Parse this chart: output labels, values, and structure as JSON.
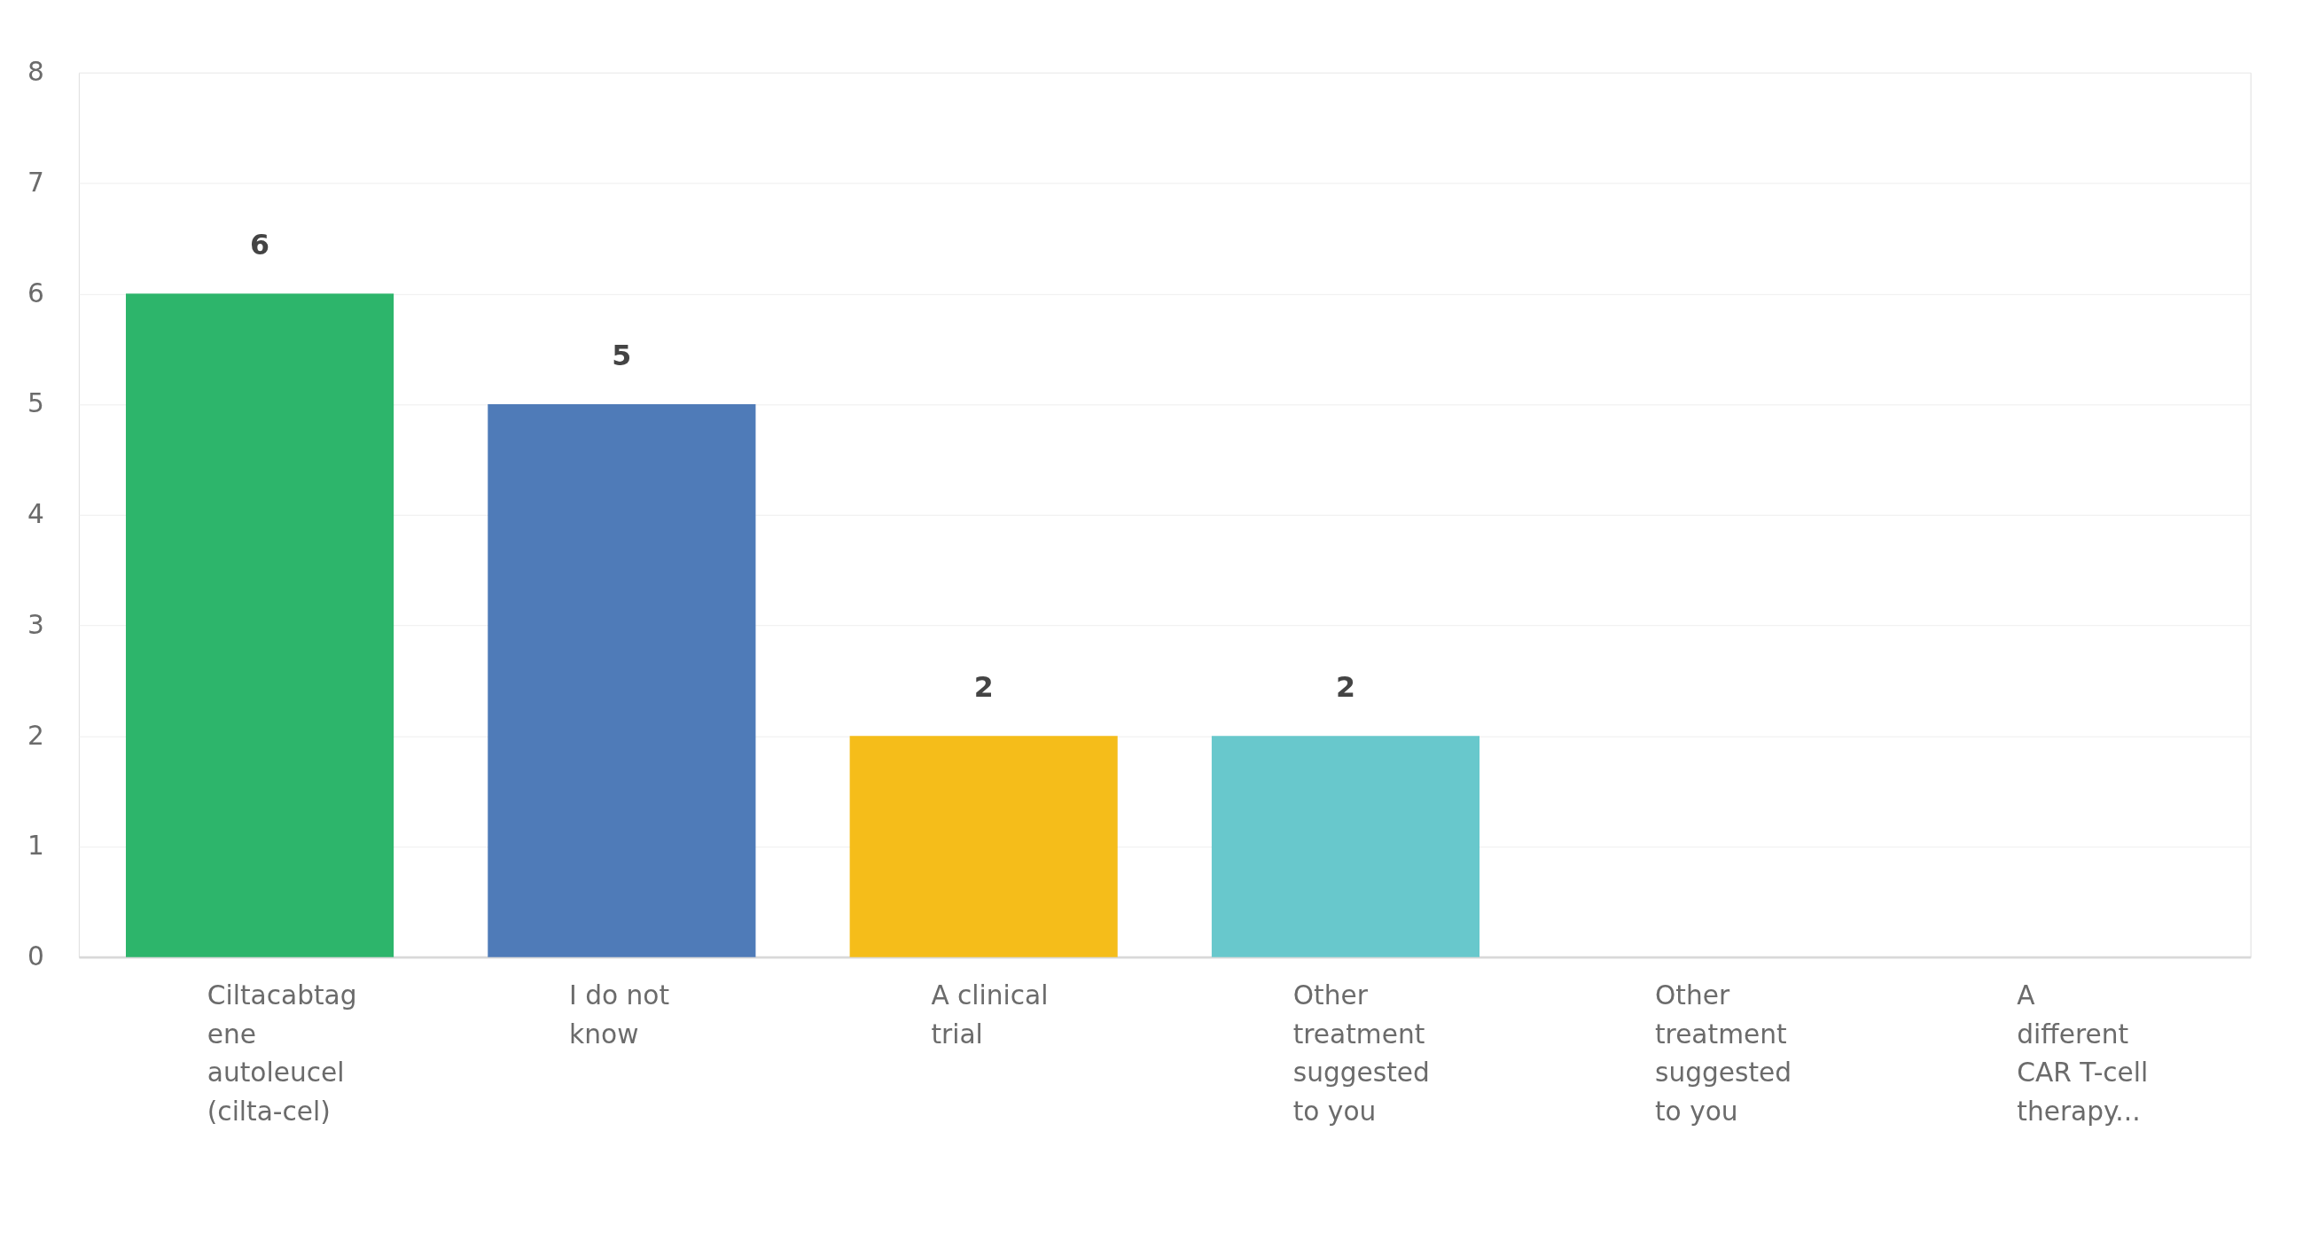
{
  "chart_data": {
    "type": "bar",
    "categories": [
      "Ciltacabtag\nene\nautoleucel\n(cilta-cel)",
      "I do not\nknow",
      "A clinical\ntrial",
      "Other\ntreatment\nsuggested\nto you",
      "Other\ntreatment\nsuggested\nto you",
      "A\ndifferent\nCAR T-cell\ntherapy..."
    ],
    "values": [
      6,
      5,
      2,
      2,
      0,
      0
    ],
    "colors": [
      "#2db56b",
      "#4f7bb8",
      "#f5bd1a",
      "#68c8cc",
      null,
      null
    ],
    "ylim": [
      0,
      8
    ],
    "yticks": [
      0,
      1,
      2,
      3,
      4,
      5,
      6,
      7,
      8
    ],
    "grid": "y",
    "value_labels": [
      "6",
      "5",
      "2",
      "2",
      null,
      null
    ]
  }
}
